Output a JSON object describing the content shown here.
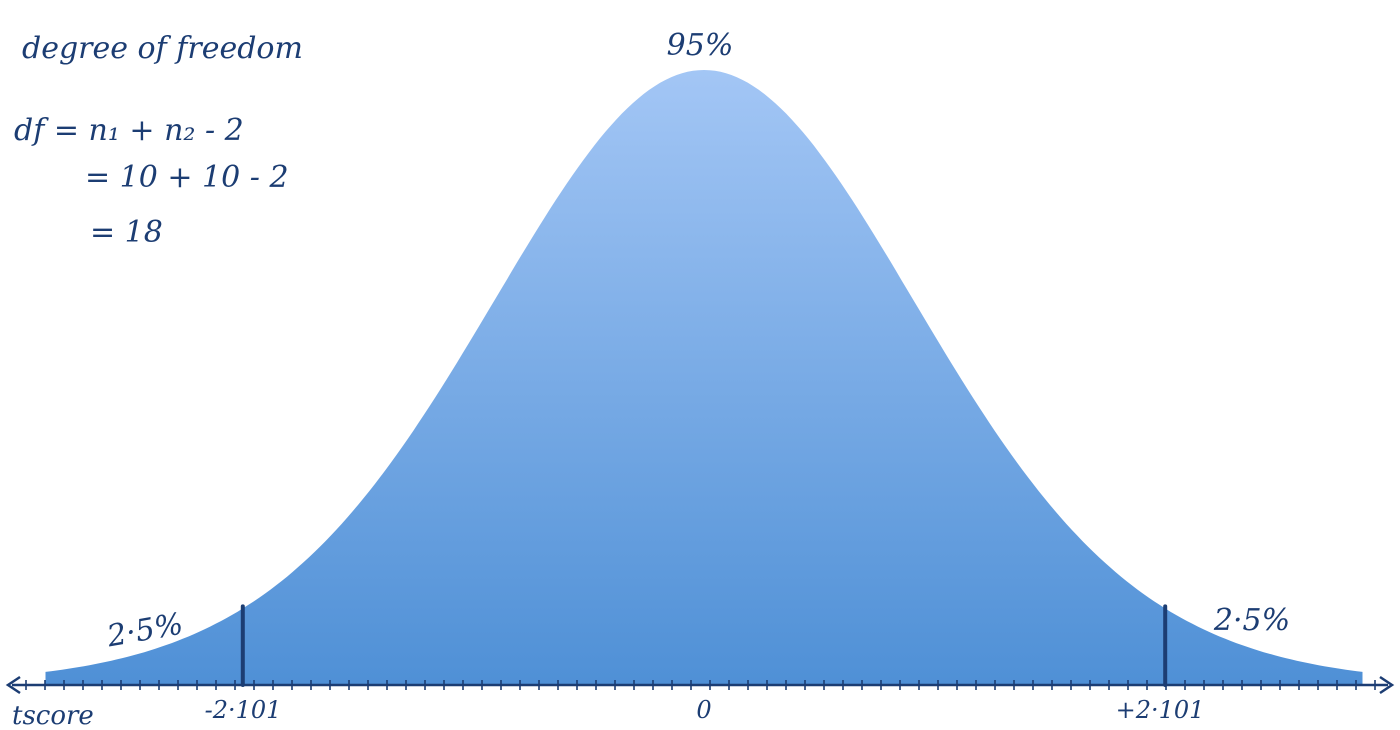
{
  "chart_data": {
    "type": "area",
    "distribution": "t",
    "degrees_of_freedom": 18,
    "x_range": [
      -3.0,
      3.0
    ],
    "critical_values": [
      -2.101,
      2.101
    ],
    "regions": {
      "center": "95%",
      "left_tail": "2·5%",
      "right_tail": "2·5%"
    },
    "xlabel": "tscore",
    "tick_labels": [
      "-2·101",
      "0",
      "+2·101"
    ],
    "colors": {
      "fill_top": "#a3c6f5",
      "fill_bottom": "#4f90d6",
      "ink": "#1c3d73"
    }
  },
  "notes": {
    "heading": "degree of freedom",
    "line1": "df = n₁ + n₂ - 2",
    "line2": "= 10 + 10 - 2",
    "line3": "= 18"
  }
}
